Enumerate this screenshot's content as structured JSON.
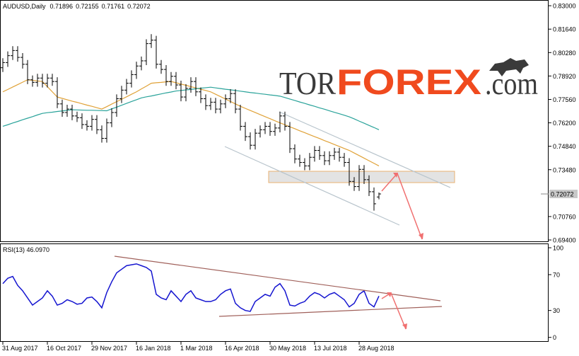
{
  "logo": {
    "parts": [
      "TOR",
      "FOREX",
      ".com"
    ]
  },
  "chart_data": [
    {
      "type": "ohlc",
      "title": "AUDUSD,Daily",
      "color": "#000000",
      "categories": [
        "31 Aug 2017",
        null,
        null,
        null,
        null,
        null,
        null,
        null,
        null,
        "16 Oct 2017",
        null,
        null,
        null,
        null,
        null,
        null,
        null,
        null,
        "29 Nov 2017",
        null,
        null,
        null,
        null,
        null,
        null,
        null,
        null,
        "16 Jan 2018",
        null,
        null,
        null,
        null,
        null,
        null,
        null,
        null,
        "1 Mar 2018",
        null,
        null,
        null,
        null,
        null,
        null,
        null,
        null,
        "16 Apr 2018",
        null,
        null,
        null,
        null,
        null,
        null,
        null,
        null,
        "30 May 2018",
        null,
        null,
        null,
        null,
        null,
        null,
        null,
        null,
        "13 Jul 2018",
        null,
        null,
        null,
        null,
        null,
        null,
        null,
        null,
        "28 Aug 2018",
        null,
        null,
        null,
        null
      ],
      "open": [
        0.794,
        0.797,
        0.801,
        0.804,
        0.8,
        0.796,
        0.787,
        0.7855,
        0.788,
        0.785,
        0.788,
        0.786,
        0.773,
        0.768,
        0.77,
        0.766,
        0.765,
        0.761,
        0.76,
        0.764,
        0.758,
        0.753,
        0.762,
        0.768,
        0.776,
        0.781,
        0.785,
        0.79,
        0.795,
        0.798,
        0.808,
        0.81,
        0.796,
        0.793,
        0.786,
        0.789,
        0.784,
        0.777,
        0.782,
        0.786,
        0.78,
        0.776,
        0.772,
        0.774,
        0.77,
        0.773,
        0.776,
        0.779,
        0.77,
        0.76,
        0.754,
        0.749,
        0.756,
        0.758,
        0.76,
        0.757,
        0.759,
        0.766,
        0.76,
        0.747,
        0.741,
        0.739,
        0.737,
        0.742,
        0.746,
        0.743,
        0.74,
        0.743,
        0.745,
        0.742,
        0.739,
        0.728,
        0.725,
        0.735,
        0.729,
        0.722,
        0.71896
      ],
      "high": [
        0.7995,
        0.8035,
        0.8065,
        0.8065,
        0.8025,
        0.7985,
        0.7895,
        0.7905,
        0.7905,
        0.7905,
        0.7905,
        0.7885,
        0.7755,
        0.7725,
        0.7725,
        0.7685,
        0.7675,
        0.7635,
        0.7665,
        0.7665,
        0.7605,
        0.7645,
        0.7705,
        0.7785,
        0.7835,
        0.7875,
        0.7925,
        0.7975,
        0.8005,
        0.8105,
        0.8135,
        0.8125,
        0.7985,
        0.7955,
        0.7915,
        0.7915,
        0.7865,
        0.7845,
        0.7885,
        0.7885,
        0.7825,
        0.7785,
        0.7765,
        0.7765,
        0.7755,
        0.7785,
        0.7815,
        0.7815,
        0.7725,
        0.7625,
        0.7565,
        0.7585,
        0.7605,
        0.7625,
        0.7625,
        0.7615,
        0.7685,
        0.7685,
        0.7625,
        0.7495,
        0.7435,
        0.7415,
        0.7445,
        0.7485,
        0.7485,
        0.7455,
        0.7455,
        0.7475,
        0.7475,
        0.7445,
        0.7415,
        0.7305,
        0.7375,
        0.7375,
        0.7315,
        0.7245,
        0.72155
      ],
      "low": [
        0.7915,
        0.7945,
        0.7985,
        0.7975,
        0.7935,
        0.7845,
        0.783,
        0.783,
        0.7825,
        0.7825,
        0.7835,
        0.7705,
        0.7655,
        0.7655,
        0.7635,
        0.7625,
        0.7585,
        0.7575,
        0.7575,
        0.7555,
        0.7505,
        0.7505,
        0.7595,
        0.7655,
        0.7735,
        0.7785,
        0.7825,
        0.7875,
        0.7925,
        0.7955,
        0.8055,
        0.7935,
        0.7905,
        0.7835,
        0.7835,
        0.7815,
        0.7745,
        0.7745,
        0.7795,
        0.7775,
        0.7735,
        0.7695,
        0.7695,
        0.7675,
        0.7675,
        0.7705,
        0.7735,
        0.7675,
        0.7575,
        0.7515,
        0.7465,
        0.7465,
        0.7535,
        0.7555,
        0.7545,
        0.7545,
        0.7565,
        0.7575,
        0.7445,
        0.7385,
        0.7365,
        0.7345,
        0.7345,
        0.7395,
        0.7405,
        0.7375,
        0.7375,
        0.7405,
        0.7395,
        0.7365,
        0.7255,
        0.7225,
        0.7225,
        0.7265,
        0.7195,
        0.711,
        0.71761
      ],
      "close": [
        0.797,
        0.801,
        0.804,
        0.8,
        0.796,
        0.787,
        0.7855,
        0.788,
        0.785,
        0.788,
        0.786,
        0.773,
        0.768,
        0.77,
        0.766,
        0.765,
        0.761,
        0.76,
        0.764,
        0.758,
        0.753,
        0.762,
        0.768,
        0.776,
        0.781,
        0.785,
        0.79,
        0.795,
        0.798,
        0.808,
        0.81,
        0.796,
        0.793,
        0.786,
        0.789,
        0.784,
        0.777,
        0.782,
        0.786,
        0.78,
        0.776,
        0.772,
        0.774,
        0.77,
        0.773,
        0.776,
        0.779,
        0.77,
        0.76,
        0.754,
        0.749,
        0.756,
        0.758,
        0.76,
        0.757,
        0.759,
        0.766,
        0.76,
        0.747,
        0.741,
        0.739,
        0.737,
        0.742,
        0.746,
        0.743,
        0.74,
        0.743,
        0.745,
        0.742,
        0.739,
        0.728,
        0.725,
        0.735,
        0.729,
        0.722,
        0.715,
        0.72072
      ],
      "series": [
        {
          "color": "#e0a238",
          "values": [
            0.78,
            0.7814,
            0.7828,
            0.7842,
            0.7856,
            0.787,
            0.7867,
            0.7863,
            0.786,
            0.783,
            0.78,
            0.777,
            0.7762,
            0.7754,
            0.7746,
            0.7739,
            0.7731,
            0.7723,
            0.7716,
            0.7708,
            0.77,
            0.7714,
            0.7729,
            0.7743,
            0.7757,
            0.7771,
            0.7786,
            0.78,
            0.7817,
            0.7833,
            0.785,
            0.7853,
            0.7855,
            0.7858,
            0.786,
            0.7853,
            0.7845,
            0.7838,
            0.783,
            0.7823,
            0.7815,
            0.7808,
            0.78,
            0.7786,
            0.7772,
            0.7758,
            0.7744,
            0.773,
            0.7716,
            0.7704,
            0.7692,
            0.768,
            0.7668,
            0.7656,
            0.7644,
            0.7632,
            0.762,
            0.7609,
            0.7597,
            0.7586,
            0.7574,
            0.7563,
            0.7551,
            0.754,
            0.7529,
            0.7517,
            0.7506,
            0.7494,
            0.7483,
            0.7471,
            0.746,
            0.7445,
            0.743,
            0.7415,
            0.74,
            0.7385,
            0.737
          ]
        },
        {
          "color": "#2aa39a",
          "values": [
            0.76,
            0.7609,
            0.7619,
            0.7628,
            0.7638,
            0.7647,
            0.7656,
            0.7666,
            0.7675,
            0.7679,
            0.7682,
            0.7686,
            0.7689,
            0.7693,
            0.7696,
            0.7695,
            0.7694,
            0.7693,
            0.7693,
            0.7692,
            0.7691,
            0.769,
            0.7701,
            0.7711,
            0.7722,
            0.7733,
            0.7744,
            0.7754,
            0.7765,
            0.7771,
            0.7776,
            0.7782,
            0.7788,
            0.7794,
            0.7799,
            0.7805,
            0.7808,
            0.7811,
            0.7814,
            0.7818,
            0.7821,
            0.7824,
            0.7827,
            0.7823,
            0.7819,
            0.7815,
            0.7812,
            0.7808,
            0.7804,
            0.78,
            0.7796,
            0.7793,
            0.7789,
            0.7786,
            0.7782,
            0.7779,
            0.7775,
            0.7767,
            0.7758,
            0.775,
            0.7741,
            0.7733,
            0.7724,
            0.7716,
            0.7707,
            0.7699,
            0.769,
            0.7681,
            0.7673,
            0.7664,
            0.7655,
            0.7643,
            0.763,
            0.7618,
            0.7605,
            0.7593,
            0.758
          ]
        }
      ],
      "ylim": [
        0.6932,
        0.8325
      ],
      "yticks": [
        {
          "value": 0.83,
          "label": "0.83000"
        },
        {
          "value": 0.8164,
          "label": "0.81640"
        },
        {
          "value": 0.8028,
          "label": "0.80280"
        },
        {
          "value": 0.7892,
          "label": "0.78920"
        },
        {
          "value": 0.7756,
          "label": "0.77560"
        },
        {
          "value": 0.762,
          "label": "0.76200"
        },
        {
          "value": 0.7484,
          "label": "0.74840"
        },
        {
          "value": 0.7348,
          "label": "0.73480"
        },
        {
          "value": 0.7076,
          "label": "0.70760"
        },
        {
          "value": 0.694,
          "label": "0.69400"
        }
      ]
    },
    {
      "type": "line",
      "title": "RSI(13) 46.0970",
      "series": [
        {
          "color": "#1515d0",
          "values": [
            60,
            66,
            68,
            58,
            52,
            44,
            36,
            40,
            44,
            52,
            46,
            36,
            38,
            42,
            40,
            37,
            38,
            44,
            45,
            40,
            33,
            50,
            62,
            72,
            76,
            80,
            81,
            82,
            80,
            78,
            74,
            48,
            44,
            42,
            52,
            46,
            40,
            48,
            52,
            44,
            42,
            40,
            40,
            42,
            48,
            52,
            54,
            38,
            33,
            30,
            29,
            40,
            44,
            48,
            46,
            56,
            60,
            52,
            36,
            35,
            38,
            40,
            46,
            50,
            48,
            44,
            48,
            50,
            46,
            42,
            34,
            38,
            48,
            52,
            38,
            34,
            46.097
          ]
        }
      ],
      "ylim": [
        -5,
        104
      ],
      "yticks": [
        100,
        70,
        30,
        0
      ]
    }
  ]
}
